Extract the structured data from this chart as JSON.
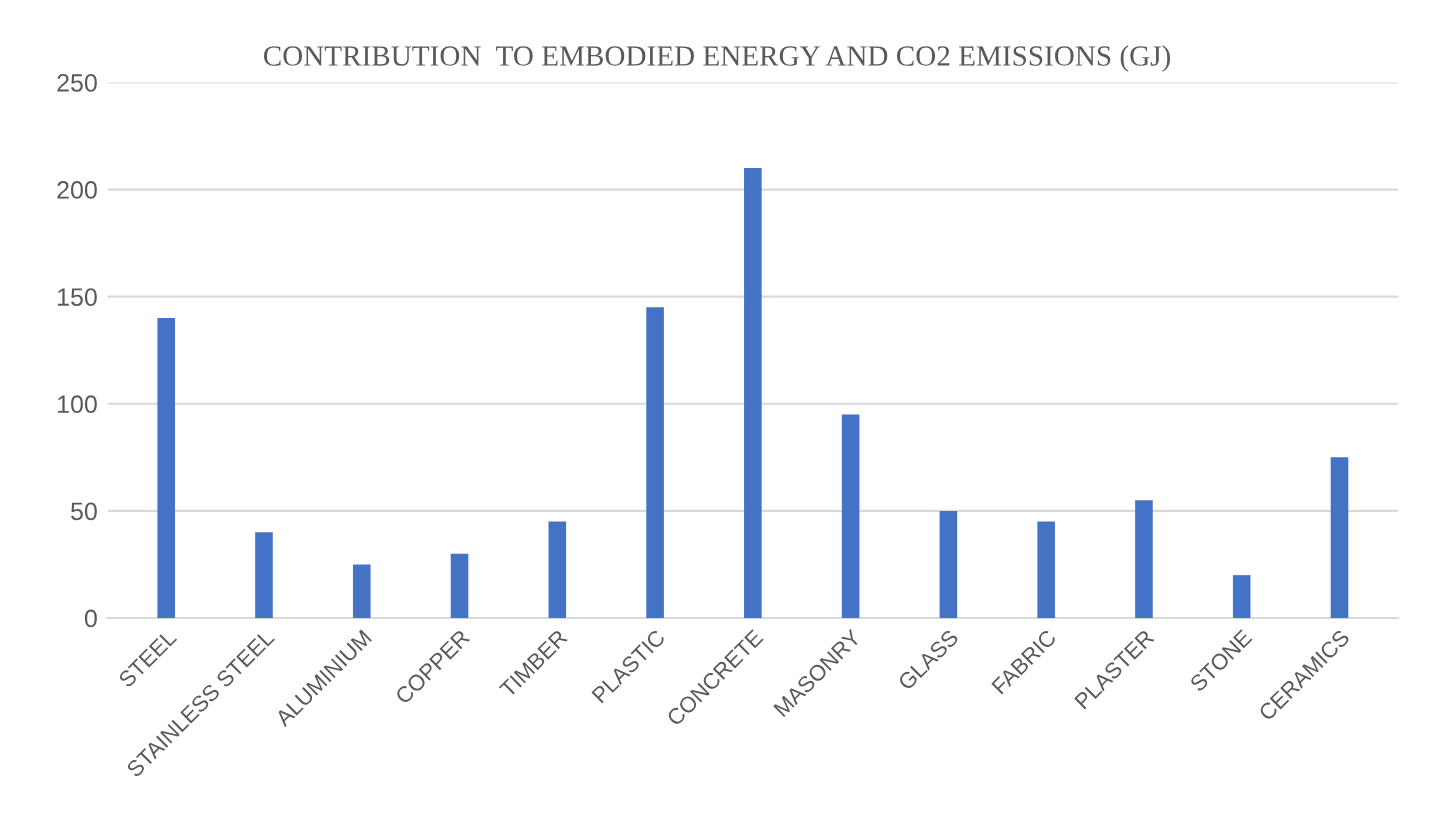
{
  "chart_data": {
    "type": "bar",
    "title": "CONTRIBUTION  TO EMBODIED ENERGY AND CO2 EMISSIONS (GJ)",
    "categories": [
      "STEEL",
      "STAINLESS STEEL",
      "ALUMINIUM",
      "COPPER",
      "TIMBER",
      "PLASTIC",
      "CONCRETE",
      "MASONRY",
      "GLASS",
      "FABRIC",
      "PLASTER",
      "STONE",
      "CERAMICS"
    ],
    "values": [
      140,
      40,
      25,
      30,
      45,
      145,
      210,
      95,
      50,
      45,
      55,
      20,
      75
    ],
    "color": "#4472c4",
    "ylim": [
      0,
      250
    ],
    "yticks": [
      0,
      50,
      100,
      150,
      200,
      250
    ],
    "grid": "y"
  }
}
